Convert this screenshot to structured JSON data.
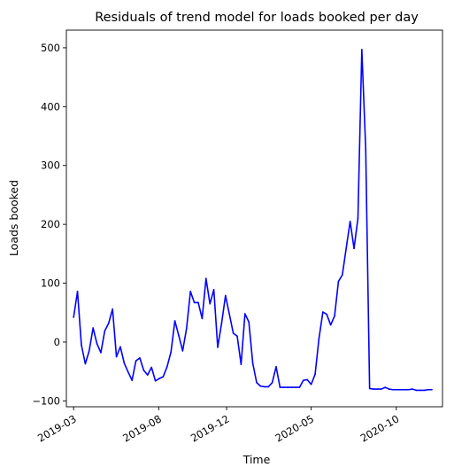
{
  "chart_data": {
    "type": "line",
    "title": "Residuals of trend model for loads booked per day",
    "xlabel": "Time",
    "ylabel": "Loads booked",
    "grid": false,
    "legend": "none",
    "ylim": [
      -110,
      530
    ],
    "yticks": [
      -100,
      0,
      100,
      200,
      300,
      400,
      500
    ],
    "xticks": [
      "2019-03",
      "2019-08",
      "2019-12",
      "2020-05",
      "2020-10"
    ],
    "x_range": [
      "2019-02-16",
      "2020-12-23"
    ],
    "series": [
      {
        "color": "#0000ff",
        "x": [
          "2019-03-01",
          "2019-03-08",
          "2019-03-15",
          "2019-03-22",
          "2019-03-29",
          "2019-04-05",
          "2019-04-12",
          "2019-04-19",
          "2019-04-26",
          "2019-05-03",
          "2019-05-10",
          "2019-05-17",
          "2019-05-24",
          "2019-05-31",
          "2019-06-07",
          "2019-06-14",
          "2019-06-21",
          "2019-06-28",
          "2019-07-05",
          "2019-07-12",
          "2019-07-19",
          "2019-07-26",
          "2019-08-02",
          "2019-08-09",
          "2019-08-16",
          "2019-08-23",
          "2019-08-30",
          "2019-09-06",
          "2019-09-13",
          "2019-09-20",
          "2019-09-27",
          "2019-10-04",
          "2019-10-11",
          "2019-10-18",
          "2019-10-25",
          "2019-11-01",
          "2019-11-08",
          "2019-11-15",
          "2019-11-22",
          "2019-11-29",
          "2019-12-06",
          "2019-12-13",
          "2019-12-20",
          "2019-12-27",
          "2020-01-03",
          "2020-01-10",
          "2020-01-17",
          "2020-01-24",
          "2020-01-31",
          "2020-02-07",
          "2020-02-14",
          "2020-02-21",
          "2020-02-28",
          "2020-03-06",
          "2020-03-13",
          "2020-03-20",
          "2020-03-27",
          "2020-04-03",
          "2020-04-10",
          "2020-04-17",
          "2020-04-24",
          "2020-05-01",
          "2020-05-08",
          "2020-05-15",
          "2020-05-22",
          "2020-05-29",
          "2020-06-05",
          "2020-06-12",
          "2020-06-19",
          "2020-06-26",
          "2020-07-03",
          "2020-07-10",
          "2020-07-17",
          "2020-07-24",
          "2020-07-31",
          "2020-08-07",
          "2020-08-14",
          "2020-08-21",
          "2020-08-28",
          "2020-09-04",
          "2020-09-11",
          "2020-09-18",
          "2020-09-25",
          "2020-10-02",
          "2020-10-09",
          "2020-10-16",
          "2020-10-23",
          "2020-10-30",
          "2020-11-06",
          "2020-11-13",
          "2020-11-20",
          "2020-11-27",
          "2020-12-04"
        ],
        "y": [
          42,
          86,
          -5,
          -37,
          -15,
          24,
          -3,
          -18,
          19,
          32,
          56,
          -25,
          -8,
          -36,
          -51,
          -65,
          -32,
          -27,
          -48,
          -56,
          -43,
          -66,
          -62,
          -59,
          -42,
          -17,
          36,
          11,
          -15,
          23,
          86,
          67,
          67,
          40,
          108,
          65,
          89,
          -9,
          32,
          79,
          47,
          15,
          10,
          -38,
          48,
          34,
          -36,
          -69,
          -75,
          -76,
          -76,
          -69,
          -42,
          -77,
          -77,
          -77,
          -77,
          -77,
          -77,
          -65,
          -64,
          -72,
          -55,
          6,
          51,
          47,
          29,
          44,
          103,
          114,
          160,
          205,
          159,
          210,
          497,
          328,
          -79,
          -80,
          -80,
          -80,
          -77,
          -80,
          -81,
          -81,
          -81,
          -81,
          -81,
          -80,
          -82,
          -82,
          -82,
          -81,
          -81
        ]
      }
    ]
  }
}
